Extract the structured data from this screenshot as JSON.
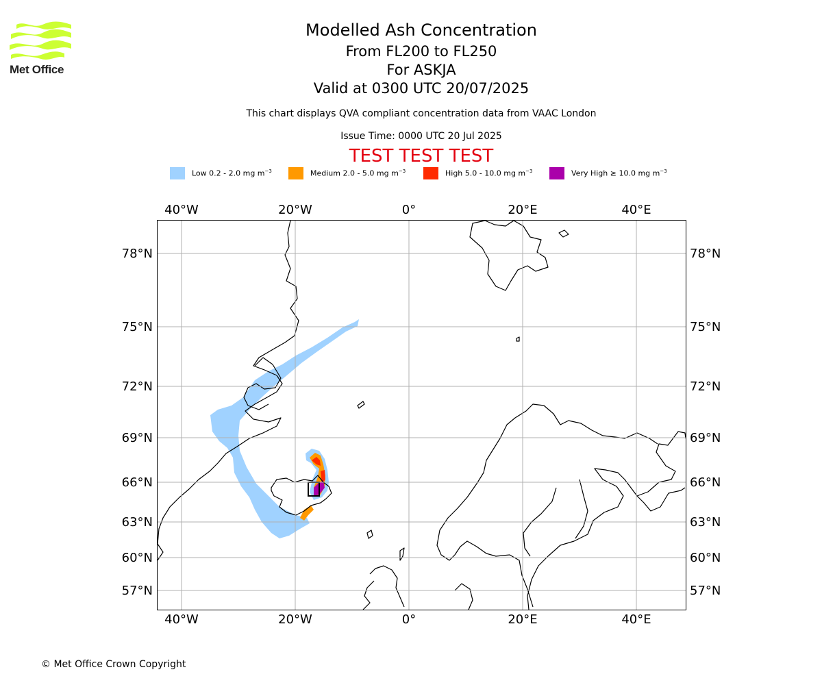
{
  "brand": {
    "name": "Met Office",
    "logo_color": "#ccff33",
    "logo_icon": "met-office-wave-icon"
  },
  "title": {
    "line1": "Modelled Ash Concentration",
    "line2": "From FL200 to FL250",
    "line3": "For ASKJA",
    "line4": "Valid at 0300 UTC 20/07/2025"
  },
  "subtitle": "This chart displays QVA compliant concentration data from VAAC London",
  "issue_time": "Issue Time: 0000 UTC 20 Jul 2025",
  "test_banner": "TEST TEST TEST",
  "legend": [
    {
      "label": "Low 0.2 - 2.0 mg m",
      "unit_sup": "−3",
      "color": "#a0d2ff"
    },
    {
      "label": "Medium 2.0 - 5.0 mg m",
      "unit_sup": "−3",
      "color": "#ff9900"
    },
    {
      "label": "High 5.0 - 10.0 mg m",
      "unit_sup": "−3",
      "color": "#ff2a00"
    },
    {
      "label": "Very High  ≥  10.0 mg m",
      "unit_sup": "−3",
      "color": "#aa00aa"
    }
  ],
  "map": {
    "lon_labels": [
      "40°W",
      "20°W",
      "0°",
      "20°E",
      "40°E"
    ],
    "lat_labels": [
      "78°N",
      "75°N",
      "72°N",
      "69°N",
      "66°N",
      "63°N",
      "60°N",
      "57°N"
    ],
    "volcano": "ASKJA",
    "gridlines": true
  },
  "copyright": "© Met Office Crown Copyright"
}
